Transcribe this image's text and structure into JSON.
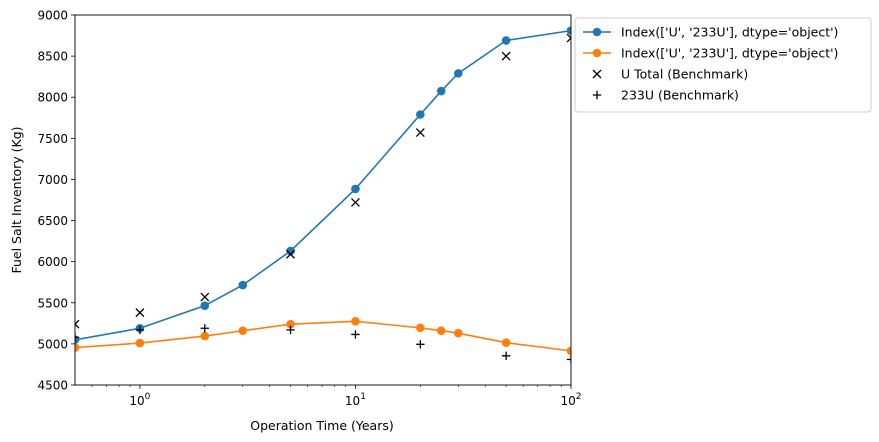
{
  "chart_data": {
    "type": "line",
    "title": "",
    "xlabel": "Operation Time (Years)",
    "ylabel": "Fuel Salt Inventory (Kg)",
    "xscale": "log",
    "xlim": [
      0.5,
      100
    ],
    "ylim": [
      4500,
      9000
    ],
    "grid": false,
    "legend_placement": "outside-top-right",
    "x_ticks": [
      {
        "value": 1,
        "base": "10",
        "exp": "0"
      },
      {
        "value": 10,
        "base": "10",
        "exp": "1"
      },
      {
        "value": 100,
        "base": "10",
        "exp": "2"
      }
    ],
    "y_ticks": [
      4500,
      5000,
      5500,
      6000,
      6500,
      7000,
      7500,
      8000,
      8500,
      9000
    ],
    "series": [
      {
        "name": "Index(['U', '233U'], dtype='object')",
        "color": "#1f77b4",
        "style": "line-circle",
        "x": [
          0.5,
          1,
          2,
          3,
          5,
          10,
          20,
          25,
          30,
          50,
          100
        ],
        "y": [
          5050,
          5190,
          5465,
          5715,
          6130,
          6885,
          7790,
          8075,
          8290,
          8690,
          8810
        ]
      },
      {
        "name": "Index(['U', '233U'], dtype='object')",
        "color": "#ff7f0e",
        "style": "line-circle",
        "x": [
          0.5,
          1,
          2,
          3,
          5,
          10,
          20,
          25,
          30,
          50,
          100
        ],
        "y": [
          4955,
          5010,
          5095,
          5160,
          5240,
          5275,
          5195,
          5160,
          5130,
          5015,
          4915
        ]
      },
      {
        "name": "U Total (Benchmark)",
        "color": "#000000",
        "style": "x-marker",
        "x": [
          0.5,
          1,
          2,
          5,
          10,
          20,
          50,
          100
        ],
        "y": [
          5240,
          5380,
          5570,
          6090,
          6720,
          7570,
          8500,
          8720
        ]
      },
      {
        "name": "233U (Benchmark)",
        "color": "#000000",
        "style": "plus-marker",
        "x": [
          0.5,
          1,
          2,
          5,
          10,
          20,
          50,
          100
        ],
        "y": [
          5080,
          5170,
          5190,
          5170,
          5115,
          4995,
          4855,
          4810
        ]
      }
    ]
  }
}
